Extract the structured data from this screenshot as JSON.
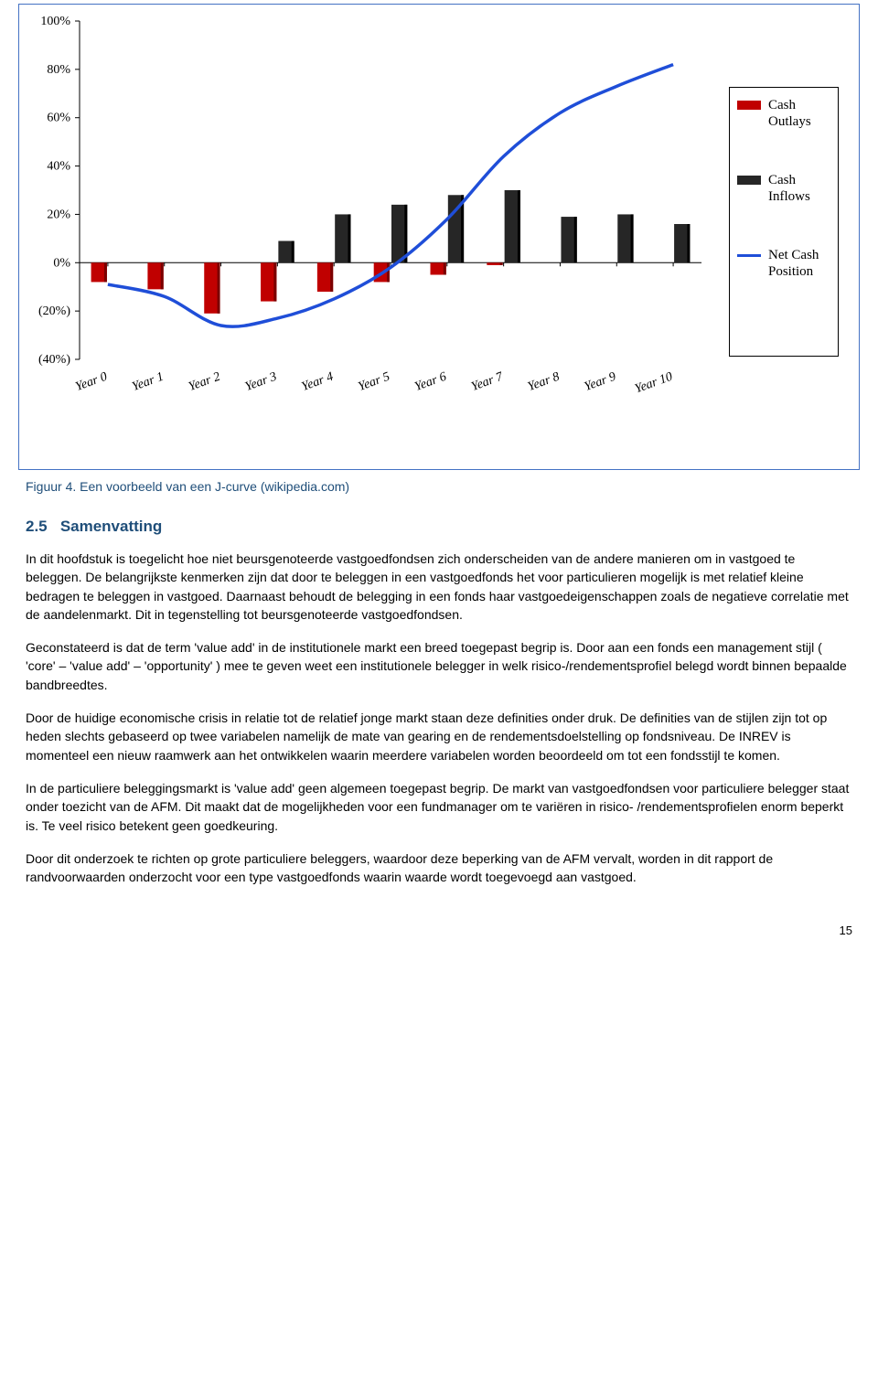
{
  "chart": {
    "type": "bar+line",
    "border_color": "#4472c4",
    "background_color": "#ffffff",
    "y_axis": {
      "min": -40,
      "max": 100,
      "step": 20,
      "tick_labels": [
        "(40%)",
        "(20%)",
        "0%",
        "20%",
        "40%",
        "60%",
        "80%",
        "100%"
      ],
      "tick_values": [
        -40,
        -20,
        0,
        20,
        40,
        60,
        80,
        100
      ]
    },
    "x_categories": [
      "Year 0",
      "Year 1",
      "Year 2",
      "Year 3",
      "Year 4",
      "Year 5",
      "Year 6",
      "Year 7",
      "Year 8",
      "Year 9",
      "Year 10"
    ],
    "cash_outlays": {
      "color": "#c00000",
      "values": [
        -8,
        -11,
        -21,
        -16,
        -12,
        -8,
        -5,
        -1,
        0,
        0,
        0
      ]
    },
    "cash_inflows": {
      "color": "#262626",
      "values": [
        0,
        0,
        0,
        9,
        20,
        24,
        28,
        30,
        19,
        20,
        16
      ]
    },
    "net_cash_position": {
      "color": "#1f4ed8",
      "line_width": 3.5,
      "values": [
        -9,
        -14,
        -26,
        -23,
        -15,
        -2,
        18,
        44,
        62,
        73,
        82
      ]
    },
    "legend": {
      "items": [
        {
          "swatch_type": "bar",
          "color": "#c00000",
          "label": "Cash Outlays"
        },
        {
          "swatch_type": "bar",
          "color": "#262626",
          "label": "Cash Inflows"
        },
        {
          "swatch_type": "line",
          "color": "#1f4ed8",
          "label": "Net Cash Position"
        }
      ]
    },
    "axis_font_family": "Times New Roman",
    "axis_font_size": 14
  },
  "caption": "Figuur 4. Een voorbeeld van een J-curve (wikipedia.com)",
  "section_number": "2.5",
  "section_title": "Samenvatting",
  "paragraphs": [
    "In dit hoofdstuk is toegelicht hoe niet beursgenoteerde vastgoedfondsen zich onderscheiden van de andere manieren om in vastgoed te beleggen. De belangrijkste kenmerken zijn dat door te beleggen in een vastgoedfonds het voor particulieren mogelijk is met relatief kleine bedragen te beleggen in vastgoed. Daarnaast behoudt de belegging in een fonds haar vastgoedeigenschappen zoals de negatieve correlatie met de aandelenmarkt. Dit in tegenstelling tot beursgenoteerde vastgoedfondsen.",
    "Geconstateerd is dat de term 'value add' in de institutionele markt een breed toegepast begrip is. Door aan een fonds een management stijl ( 'core' – 'value add' – 'opportunity' ) mee te geven weet een institutionele belegger in welk risico-/rendementsprofiel belegd wordt binnen bepaalde bandbreedtes.",
    "Door de huidige economische crisis in relatie tot de relatief jonge markt staan deze definities onder druk. De definities van de stijlen zijn tot op heden slechts gebaseerd op twee variabelen namelijk de mate van gearing en de rendementsdoelstelling op fondsniveau. De INREV is momenteel een nieuw raamwerk aan het ontwikkelen waarin meerdere variabelen worden beoordeeld om tot een fondsstijl te komen.",
    "In de particuliere beleggingsmarkt is 'value add' geen algemeen toegepast begrip. De markt van vastgoedfondsen voor particuliere belegger staat onder toezicht van de AFM. Dit maakt dat de mogelijkheden voor een fundmanager om te variëren in risico- /rendementsprofielen enorm beperkt is. Te veel risico betekent geen goedkeuring.",
    "Door dit onderzoek te richten op grote particuliere beleggers, waardoor deze beperking van de AFM vervalt, worden in dit rapport de randvoorwaarden onderzocht voor een type vastgoedfonds waarin waarde wordt toegevoegd aan vastgoed."
  ],
  "page_number": "15"
}
